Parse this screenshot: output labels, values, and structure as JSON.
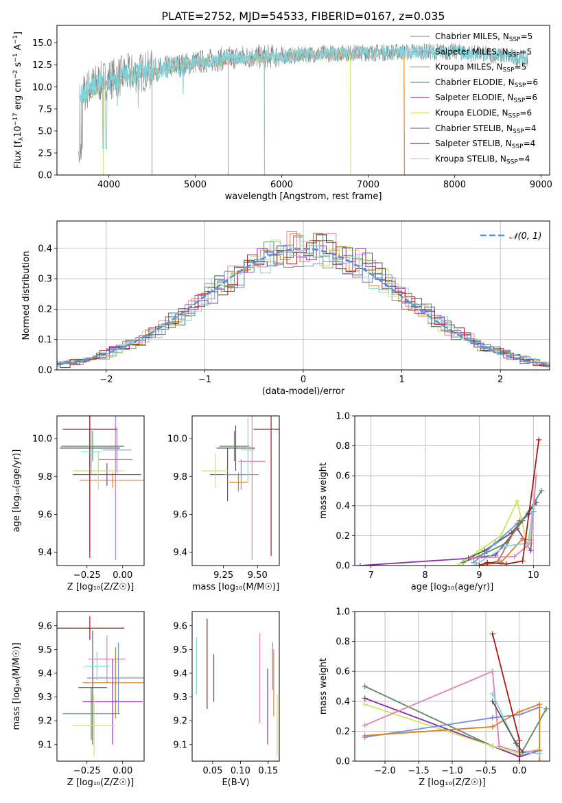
{
  "figure": {
    "title": "PLATE=2752, MJD=54533, FIBERID=0167, z=0.035"
  },
  "colors": {
    "blue": "#6f8fe0",
    "orange": "#e07b1d",
    "brown": "#a0764a",
    "green": "#5b8b5f",
    "purple": "#8b2fae",
    "yellowgreen": "#c8e65a",
    "dark": "#555555",
    "red": "#b01515",
    "cyan": "#7fd3da",
    "pink": "#e07fb8",
    "gray": "#7f7f7f",
    "dashed": "#5b8fd6"
  },
  "chart_data": [
    {
      "id": "spectrum",
      "type": "line",
      "xlabel": "wavelength [Angstrom, rest frame]",
      "ylabel": "Flux [f",
      "ylabel_parts": [
        "Flux [f",
        "λ",
        "10",
        "−17",
        " erg cm",
        "−2",
        " s",
        "−1",
        " A",
        "−1",
        "]"
      ],
      "xlim": [
        3400,
        9100
      ],
      "ylim": [
        0,
        17
      ],
      "xticks": [
        4000,
        5000,
        6000,
        7000,
        8000,
        9000
      ],
      "yticks": [
        0.0,
        2.5,
        5.0,
        7.5,
        10.0,
        12.5,
        15.0
      ],
      "ytick_labels": [
        "0.0",
        "2.5",
        "5.0",
        "7.5",
        "10.0",
        "12.5",
        "15.0"
      ],
      "legend_position": "top-right",
      "legend": [
        {
          "pre": "Chabrier MILES, N",
          "sub": "SSP",
          "post": "=5",
          "color": "#7f7f7f"
        },
        {
          "pre": "Salpeter MILES, N",
          "sub": "SSP",
          "post": "=5",
          "color": "#e07fb8"
        },
        {
          "pre": "Kroupa MILES, N",
          "sub": "SSP",
          "post": "=5",
          "color": "#e07b1d"
        },
        {
          "pre": "Chabrier ELODIE, N",
          "sub": "SSP",
          "post": "=6",
          "color": "#5b8b5f"
        },
        {
          "pre": "Salpeter ELODIE, N",
          "sub": "SSP",
          "post": "=6",
          "color": "#8b2fae"
        },
        {
          "pre": "Kroupa ELODIE, N",
          "sub": "SSP",
          "post": "=6",
          "color": "#c8e65a"
        },
        {
          "pre": "Chabrier STELIB, N",
          "sub": "SSP",
          "post": "=4",
          "color": "#555555"
        },
        {
          "pre": "Salpeter STELIB, N",
          "sub": "SSP",
          "post": "=4",
          "color": "#b01515"
        },
        {
          "pre": "Kroupa STELIB, N",
          "sub": "SSP",
          "post": "=4",
          "color": "#7fd3da"
        }
      ],
      "continuum": [
        [
          3650,
          8.6
        ],
        [
          3800,
          10.2
        ],
        [
          4000,
          10.9
        ],
        [
          4200,
          11.4
        ],
        [
          4500,
          11.9
        ],
        [
          5000,
          12.8
        ],
        [
          5500,
          13.4
        ],
        [
          6000,
          13.5
        ],
        [
          6500,
          13.8
        ],
        [
          7000,
          13.9
        ],
        [
          7500,
          14.0
        ],
        [
          8000,
          14.0
        ],
        [
          8500,
          13.6
        ],
        [
          8850,
          13.2
        ]
      ],
      "models_end": [
        [
          3650,
          8.5
        ],
        [
          3900,
          9.9
        ],
        [
          4200,
          11.2
        ],
        [
          5000,
          12.7
        ],
        [
          6000,
          13.5
        ],
        [
          7000,
          13.8
        ],
        [
          7400,
          13.9
        ]
      ],
      "dips": [
        [
          3935,
          3.0
        ],
        [
          4500,
          0.0
        ],
        [
          5380,
          0.0
        ],
        [
          5800,
          0.0
        ],
        [
          6800,
          0.0
        ],
        [
          7420,
          0.0
        ]
      ]
    },
    {
      "id": "residuals",
      "type": "bar",
      "xlabel": "(data-model)/error",
      "ylabel": "Normed distribution",
      "xlim": [
        -2.5,
        2.5
      ],
      "ylim": [
        0,
        0.49
      ],
      "xticks": [
        -2,
        -1,
        0,
        1,
        2
      ],
      "xtick_labels": [
        "−2",
        "−1",
        "0",
        "1",
        "2"
      ],
      "yticks": [
        0.0,
        0.1,
        0.2,
        0.3,
        0.4
      ],
      "ytick_labels": [
        "0.0",
        "0.1",
        "0.2",
        "0.3",
        "0.4"
      ],
      "grid": true,
      "legend_position": "top-right",
      "legend": [
        {
          "label": "𝒩(0, 1)",
          "style": "dashed",
          "color": "#5b8fd6"
        }
      ],
      "bin_width": 0.1
    },
    {
      "id": "age-vs-Z",
      "type": "scatter",
      "xlabel": "Z [log₁₀(Z/Z☉)]",
      "ylabel": "age  [log₁₀(age/yr)]",
      "xlim": [
        -0.46,
        0.15
      ],
      "ylim": [
        9.33,
        10.12
      ],
      "xticks": [
        -0.25,
        0.0
      ],
      "xtick_labels": [
        "−0.25",
        "0.00"
      ],
      "yticks": [
        9.4,
        9.6,
        9.8,
        10.0
      ],
      "ytick_labels": [
        "9.4",
        "9.6",
        "9.8",
        "10.0"
      ],
      "points": [
        {
          "x": -0.23,
          "y": 9.95,
          "xerr": 0.21,
          "yerr": 0.55,
          "color": "#555555"
        },
        {
          "x": -0.05,
          "y": 9.89,
          "xerr": 0.12,
          "yerr": 0.53,
          "color": "#e07fb8"
        },
        {
          "x": -0.07,
          "y": 9.78,
          "xerr": 0.23,
          "yerr": 0.04,
          "color": "#e07b1d"
        },
        {
          "x": -0.21,
          "y": 9.96,
          "xerr": 0.22,
          "yerr": 0.08,
          "color": "#5b8b5f"
        },
        {
          "x": -0.11,
          "y": 9.81,
          "xerr": 0.24,
          "yerr": 0.06,
          "color": "#8b2fae"
        },
        {
          "x": -0.17,
          "y": 9.83,
          "xerr": 0.18,
          "yerr": 0.1,
          "color": "#c8e65a"
        },
        {
          "x": -0.04,
          "y": 9.94,
          "xerr": 0.1,
          "yerr": 0.12,
          "color": "#6f8fe0"
        },
        {
          "x": -0.23,
          "y": 10.05,
          "xerr": 0.19,
          "yerr": 0.68,
          "color": "#b01515"
        },
        {
          "x": -0.22,
          "y": 9.93,
          "xerr": 0.07,
          "yerr": 0.12,
          "color": "#7fd3da"
        }
      ]
    },
    {
      "id": "age-vs-mass",
      "type": "scatter",
      "xlabel": "mass [log₁₀(M/M☉)]",
      "ylabel": "",
      "xlim": [
        9.02,
        9.66
      ],
      "ylim": [
        9.33,
        10.12
      ],
      "xticks": [
        9.25,
        9.5
      ],
      "xtick_labels": [
        "9.25",
        "9.50"
      ],
      "yticks": [
        9.4,
        9.6,
        9.8,
        10.0
      ],
      "ytick_labels": [
        "9.4",
        "9.6",
        "9.8",
        "10.0"
      ],
      "points": [
        {
          "x": 9.34,
          "y": 9.95,
          "xerr": 0.14,
          "yerr": 0.12,
          "color": "#555555"
        },
        {
          "x": 9.46,
          "y": 9.88,
          "xerr": 0.1,
          "yerr": 0.52,
          "color": "#e07fb8"
        },
        {
          "x": 9.36,
          "y": 9.77,
          "xerr": 0.07,
          "yerr": 0.05,
          "color": "#e07b1d"
        },
        {
          "x": 9.33,
          "y": 9.96,
          "xerr": 0.11,
          "yerr": 0.08,
          "color": "#5b8b5f"
        },
        {
          "x": 9.28,
          "y": 9.81,
          "xerr": 0.13,
          "yerr": 0.14,
          "color": "#8b2fae"
        },
        {
          "x": 9.19,
          "y": 9.83,
          "xerr": 0.1,
          "yerr": 0.09,
          "color": "#c8e65a"
        },
        {
          "x": 9.38,
          "y": 9.81,
          "xerr": 0.13,
          "yerr": 0.08,
          "color": "#6f8fe0"
        },
        {
          "x": 9.6,
          "y": 10.05,
          "xerr": 0.13,
          "yerr": 0.67,
          "color": "#b01515"
        },
        {
          "x": 9.43,
          "y": 9.94,
          "xerr": 0.05,
          "yerr": 0.17,
          "color": "#7fd3da"
        }
      ]
    },
    {
      "id": "weight-vs-age",
      "type": "line",
      "xlabel": "age  [log₁₀(age/yr)]",
      "ylabel": "mass weight",
      "xlim": [
        6.7,
        10.3
      ],
      "ylim": [
        0,
        1.0
      ],
      "xticks": [
        7,
        8,
        9,
        10
      ],
      "xtick_labels": [
        "7",
        "8",
        "9",
        "10"
      ],
      "yticks": [
        0.0,
        0.2,
        0.4,
        0.6,
        0.8,
        1.0
      ],
      "ytick_labels": [
        "0.0",
        "0.2",
        "0.4",
        "0.6",
        "0.8",
        "1.0"
      ],
      "grid": true,
      "series": [
        {
          "color": "#8b2fae",
          "x": [
            6.8,
            8.9,
            9.3,
            9.7,
            9.95,
            10.0
          ],
          "y": [
            0.0,
            0.05,
            0.07,
            0.25,
            0.1,
            0.4
          ]
        },
        {
          "color": "#c8e65a",
          "x": [
            8.6,
            9.0,
            9.4,
            9.7,
            9.9,
            10.0
          ],
          "y": [
            0.0,
            0.1,
            0.2,
            0.43,
            0.12,
            0.38
          ]
        },
        {
          "color": "#5b8b5f",
          "x": [
            8.7,
            9.1,
            9.5,
            9.8,
            10.15
          ],
          "y": [
            0.02,
            0.08,
            0.15,
            0.3,
            0.5
          ]
        },
        {
          "color": "#555555",
          "x": [
            8.8,
            9.1,
            9.6,
            9.9,
            10.05
          ],
          "y": [
            0.05,
            0.1,
            0.22,
            0.35,
            0.42
          ]
        },
        {
          "color": "#6f8fe0",
          "x": [
            8.9,
            9.3,
            9.7,
            10.0
          ],
          "y": [
            0.02,
            0.15,
            0.28,
            0.36
          ]
        },
        {
          "color": "#e07b1d",
          "x": [
            8.95,
            9.4,
            9.8,
            9.95
          ],
          "y": [
            0.0,
            0.02,
            0.18,
            0.17
          ]
        },
        {
          "color": "#a0764a",
          "x": [
            9.0,
            9.35,
            9.75
          ],
          "y": [
            0.0,
            0.03,
            0.3
          ]
        },
        {
          "color": "#e07fb8",
          "x": [
            8.85,
            9.65,
            9.95,
            10.05
          ],
          "y": [
            0.05,
            0.06,
            0.15,
            0.6
          ]
        },
        {
          "color": "#7fd3da",
          "x": [
            8.9,
            9.5,
            9.9,
            10.0
          ],
          "y": [
            0.0,
            0.13,
            0.15,
            0.4
          ]
        },
        {
          "color": "#b01515",
          "x": [
            9.0,
            9.15,
            9.5,
            9.8,
            10.1
          ],
          "y": [
            0.0,
            0.02,
            0.01,
            0.03,
            0.84
          ]
        }
      ]
    },
    {
      "id": "mass-vs-Z",
      "type": "scatter",
      "xlabel": "Z [log₁₀(Z/Z☉)]",
      "ylabel": "mass [log₁₀(M/M☉)]",
      "xlim": [
        -0.46,
        0.15
      ],
      "ylim": [
        9.03,
        9.66
      ],
      "xticks": [
        -0.25,
        0.0
      ],
      "xtick_labels": [
        "−0.25",
        "0.00"
      ],
      "yticks": [
        9.1,
        9.2,
        9.3,
        9.4,
        9.5,
        9.6
      ],
      "ytick_labels": [
        "9.1",
        "9.2",
        "9.3",
        "9.4",
        "9.5",
        "9.6"
      ],
      "points": [
        {
          "x": -0.21,
          "y": 9.34,
          "xerr": 0.1,
          "yerr": 0.24,
          "color": "#555555"
        },
        {
          "x": -0.11,
          "y": 9.46,
          "xerr": 0.13,
          "yerr": 0.1,
          "color": "#e07fb8"
        },
        {
          "x": -0.05,
          "y": 9.36,
          "xerr": 0.23,
          "yerr": 0.15,
          "color": "#e07b1d"
        },
        {
          "x": -0.22,
          "y": 9.23,
          "xerr": 0.2,
          "yerr": 0.11,
          "color": "#5b8b5f"
        },
        {
          "x": -0.07,
          "y": 9.28,
          "xerr": 0.21,
          "yerr": 0.18,
          "color": "#8b2fae"
        },
        {
          "x": -0.2,
          "y": 9.18,
          "xerr": 0.15,
          "yerr": 0.13,
          "color": "#c8e65a"
        },
        {
          "x": -0.03,
          "y": 9.38,
          "xerr": 0.22,
          "yerr": 0.15,
          "color": "#6f8fe0"
        },
        {
          "x": -0.23,
          "y": 9.59,
          "xerr": 0.24,
          "yerr": 0.05,
          "color": "#b01515"
        },
        {
          "x": -0.18,
          "y": 9.43,
          "xerr": 0.09,
          "yerr": 0.06,
          "color": "#7fd3da"
        }
      ]
    },
    {
      "id": "mass-vs-ebv",
      "type": "scatter",
      "xlabel": "E(B-V)",
      "ylabel": "",
      "xlim": [
        0.013,
        0.17
      ],
      "ylim": [
        9.03,
        9.66
      ],
      "xticks": [
        0.05,
        0.1,
        0.15
      ],
      "xtick_labels": [
        "0.05",
        "0.10",
        "0.15"
      ],
      "yticks": [
        9.1,
        9.2,
        9.3,
        9.4,
        9.5,
        9.6
      ],
      "ytick_labels": [
        "9.1",
        "9.2",
        "9.3",
        "9.4",
        "9.5",
        "9.6"
      ],
      "points": [
        {
          "x": 0.021,
          "y": 9.43,
          "yerr": 0.12,
          "color": "#7fd3da"
        },
        {
          "x": 0.04,
          "y": 9.44,
          "yerr": 0.19,
          "color": "#b01515"
        },
        {
          "x": 0.052,
          "y": 9.38,
          "yerr": 0.1,
          "color": "#555555"
        },
        {
          "x": 0.135,
          "y": 9.38,
          "yerr": 0.19,
          "color": "#e07fb8"
        },
        {
          "x": 0.149,
          "y": 9.26,
          "yerr": 0.16,
          "color": "#8b2fae"
        },
        {
          "x": 0.158,
          "y": 9.43,
          "yerr": 0.1,
          "color": "#6f8fe0"
        },
        {
          "x": 0.16,
          "y": 9.36,
          "yerr": 0.14,
          "color": "#e07b1d"
        },
        {
          "x": 0.166,
          "y": 9.18,
          "yerr": 0.13,
          "color": "#c8e65a"
        }
      ]
    },
    {
      "id": "weight-vs-Z",
      "type": "line",
      "xlabel": "Z [log₁₀(Z/Z☉)]",
      "ylabel": "mass weight",
      "xlim": [
        -2.45,
        0.45
      ],
      "ylim": [
        0,
        1.0
      ],
      "xticks": [
        -2.0,
        -1.5,
        -1.0,
        -0.5,
        0.0
      ],
      "xtick_labels": [
        "−2.0",
        "−1.5",
        "−1.0",
        "−0.5",
        "0.0"
      ],
      "yticks": [
        0.0,
        0.2,
        0.4,
        0.6,
        0.8,
        1.0
      ],
      "ytick_labels": [
        "0.0",
        "0.2",
        "0.4",
        "0.6",
        "0.8",
        "1.0"
      ],
      "grid": true,
      "series": [
        {
          "color": "#5b8b5f",
          "x": [
            -2.3,
            -0.4,
            0.0,
            0.4
          ],
          "y": [
            0.5,
            0.1,
            0.03,
            0.35
          ]
        },
        {
          "color": "#8b2fae",
          "x": [
            -2.3,
            -0.4,
            0.0,
            0.3,
            0.3
          ],
          "y": [
            0.42,
            0.1,
            0.03,
            0.07,
            0.05
          ]
        },
        {
          "color": "#c8e65a",
          "x": [
            -2.3,
            -0.4,
            0.0,
            0.3
          ],
          "y": [
            0.38,
            0.1,
            0.05,
            0.08
          ]
        },
        {
          "color": "#e07fb8",
          "x": [
            -2.3,
            -0.4,
            -0.3,
            0.0,
            0.3
          ],
          "y": [
            0.24,
            0.6,
            0.1,
            0.06,
            0.07
          ]
        },
        {
          "color": "#6f8fe0",
          "x": [
            -2.3,
            -0.4,
            0.0,
            0.3
          ],
          "y": [
            0.16,
            0.29,
            0.31,
            0.36
          ]
        },
        {
          "color": "#e07b1d",
          "x": [
            -2.3,
            -0.4,
            0.0,
            0.3,
            0.3
          ],
          "y": [
            0.17,
            0.23,
            0.33,
            0.38,
            0.0
          ]
        },
        {
          "color": "#7fd3da",
          "x": [
            -0.4,
            0.0,
            0.3
          ],
          "y": [
            0.45,
            0.06,
            0.05
          ]
        },
        {
          "color": "#555555",
          "x": [
            -0.4,
            -0.05,
            0.05
          ],
          "y": [
            0.4,
            0.12,
            0.06
          ]
        },
        {
          "color": "#b01515",
          "x": [
            -0.4,
            0.0,
            0.0
          ],
          "y": [
            0.85,
            0.14,
            0.0
          ]
        }
      ]
    }
  ]
}
